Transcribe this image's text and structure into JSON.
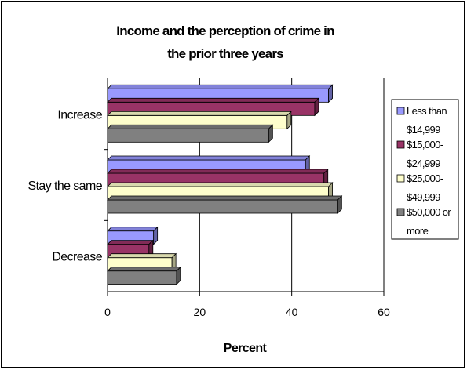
{
  "chart_data": {
    "type": "bar",
    "orientation": "horizontal",
    "title_lines": [
      "Income and the perception of crime in",
      "the prior three years"
    ],
    "categories": [
      "Increase",
      "Stay the same",
      "Decrease"
    ],
    "series": [
      {
        "name": "Less than $14,999",
        "legend_lines": [
          "Less than",
          "$14,999"
        ],
        "color": "#9999ff",
        "values": [
          48,
          43,
          10
        ]
      },
      {
        "name": "$15,000-$24,999",
        "legend_lines": [
          "$15,000-",
          "$24,999"
        ],
        "color": "#993366",
        "values": [
          45,
          47,
          9
        ]
      },
      {
        "name": "$25,000-$49,999",
        "legend_lines": [
          "$25,000-",
          "$49,999"
        ],
        "color": "#ffffcc",
        "values": [
          39,
          48,
          14
        ]
      },
      {
        "name": "$50,000 or more",
        "legend_lines": [
          "$50,000 or",
          "more"
        ],
        "color": "#808080",
        "values": [
          35,
          50,
          15
        ]
      }
    ],
    "xlabel": "Percent",
    "xlim": [
      0,
      60
    ],
    "xticks": [
      "0",
      "20",
      "40",
      "60"
    ],
    "grid": true,
    "legend_position": "right"
  }
}
